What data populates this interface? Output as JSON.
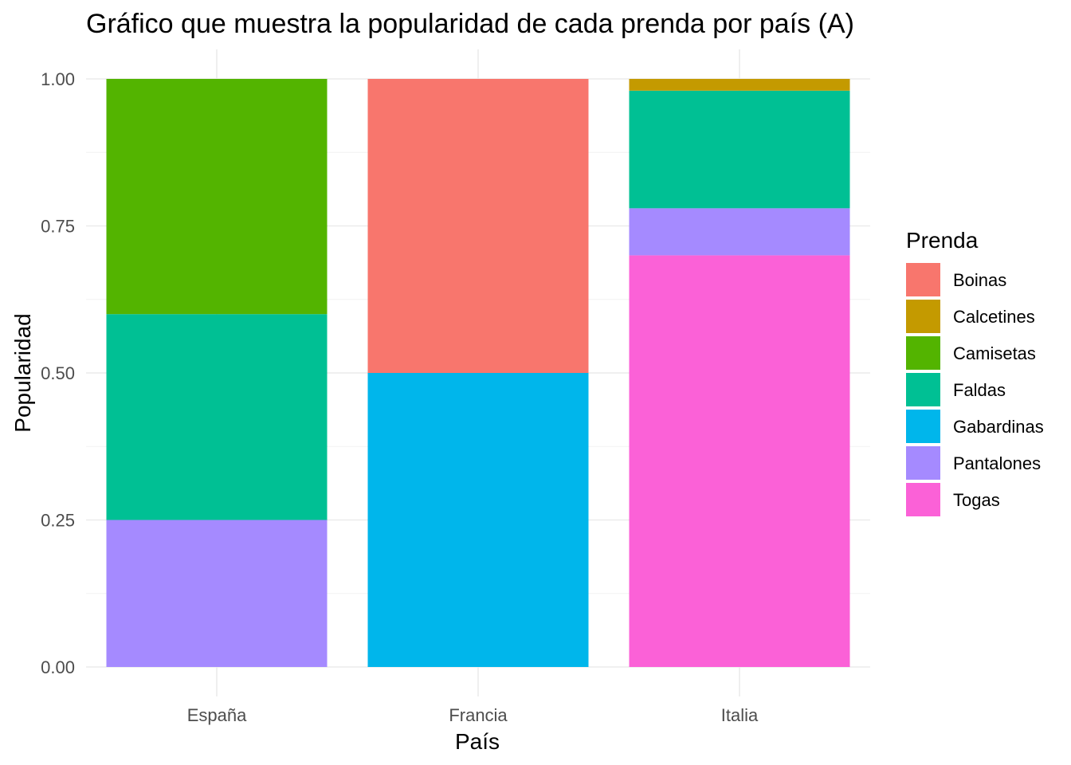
{
  "chart_data": {
    "type": "bar",
    "stacked": true,
    "title": "Gráfico que muestra la popularidad de cada prenda por país (A)",
    "xlabel": "País",
    "ylabel": "Popularidad",
    "ylim": [
      0,
      1
    ],
    "yticks": [
      "0.00",
      "0.25",
      "0.50",
      "0.75",
      "1.00"
    ],
    "grid": true,
    "legend": {
      "title": "Prenda",
      "placement": "right"
    },
    "categories": [
      "España",
      "Francia",
      "Italia"
    ],
    "series": [
      {
        "name": "Boinas",
        "color": "#F8766D",
        "values": [
          0,
          0.5,
          0
        ]
      },
      {
        "name": "Calcetines",
        "color": "#C49A00",
        "values": [
          0,
          0,
          0.02
        ]
      },
      {
        "name": "Camisetas",
        "color": "#53B400",
        "values": [
          0.4,
          0,
          0
        ]
      },
      {
        "name": "Faldas",
        "color": "#00C094",
        "values": [
          0.35,
          0,
          0.2
        ]
      },
      {
        "name": "Gabardinas",
        "color": "#00B6EB",
        "values": [
          0,
          0.5,
          0
        ]
      },
      {
        "name": "Pantalones",
        "color": "#A58AFF",
        "values": [
          0.25,
          0,
          0.08
        ]
      },
      {
        "name": "Togas",
        "color": "#FB61D7",
        "values": [
          0,
          0,
          0.7
        ]
      }
    ]
  }
}
